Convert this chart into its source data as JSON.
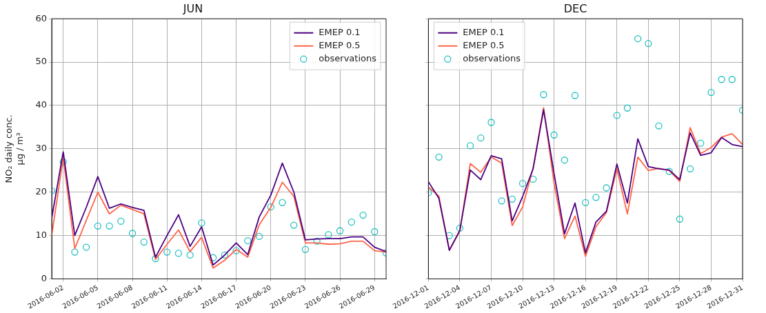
{
  "chart_data": [
    {
      "type": "line",
      "title": "JUN",
      "ylabel": "NO₂ daily conc.\nµg / m³",
      "legend": "top right",
      "grid": true,
      "x": [
        "2016-06-01",
        "2016-06-02",
        "2016-06-03",
        "2016-06-04",
        "2016-06-05",
        "2016-06-06",
        "2016-06-07",
        "2016-06-08",
        "2016-06-09",
        "2016-06-10",
        "2016-06-11",
        "2016-06-12",
        "2016-06-13",
        "2016-06-14",
        "2016-06-15",
        "2016-06-16",
        "2016-06-17",
        "2016-06-18",
        "2016-06-19",
        "2016-06-20",
        "2016-06-21",
        "2016-06-22",
        "2016-06-23",
        "2016-06-24",
        "2016-06-25",
        "2016-06-26",
        "2016-06-27",
        "2016-06-28",
        "2016-06-29",
        "2016-06-30"
      ],
      "xlim": [
        "2016-06-01",
        "2016-06-30"
      ],
      "xticks": [
        "2016-06-02",
        "2016-06-05",
        "2016-06-08",
        "2016-06-11",
        "2016-06-14",
        "2016-06-17",
        "2016-06-20",
        "2016-06-23",
        "2016-06-26",
        "2016-06-29"
      ],
      "ylim": [
        0,
        60
      ],
      "yticks": [
        0,
        10,
        20,
        30,
        40,
        50,
        60
      ],
      "series": [
        {
          "name": "EMEP 0.1",
          "type": "line",
          "marker": "none",
          "line_style": "solid",
          "color": "#4b0082",
          "values": [
            14,
            29.3,
            10,
            16.5,
            23.6,
            16.3,
            17.3,
            16.5,
            15.8,
            5,
            10,
            14.8,
            7.5,
            12,
            3.2,
            5.5,
            8.3,
            5.6,
            14.3,
            19.3,
            26.7,
            20,
            9,
            9.2,
            9.3,
            9.3,
            9.7,
            9.7,
            7.3,
            6.3
          ]
        },
        {
          "name": "EMEP 0.5",
          "type": "line",
          "marker": "none",
          "line_style": "solid",
          "color": "#ff6347",
          "values": [
            10,
            28,
            7,
            13.5,
            20,
            15,
            17,
            16,
            15,
            4.5,
            8,
            11.3,
            6.3,
            9.6,
            2.5,
            4.3,
            6.8,
            5,
            12.5,
            16.5,
            22.3,
            19,
            8.3,
            8.3,
            8,
            8.1,
            8.7,
            8.7,
            6.5,
            6.2
          ]
        },
        {
          "name": "observations",
          "type": "scatter",
          "marker": "circle",
          "color": "#20c0c0",
          "values": [
            20.3,
            27,
            6.2,
            7.3,
            12.2,
            12.2,
            13.3,
            10.5,
            8.5,
            4.7,
            6.2,
            5.9,
            5.5,
            12.9,
            4.9,
            5.5,
            6.5,
            8.8,
            9.8,
            16.6,
            17.6,
            12.4,
            6.8,
            8.7,
            10.2,
            11.1,
            13.1,
            14.7,
            10.9,
            6
          ]
        }
      ]
    },
    {
      "type": "line",
      "title": "DEC",
      "legend": "top left",
      "grid": true,
      "tick_labels": "x",
      "x": [
        "2016-12-01",
        "2016-12-02",
        "2016-12-03",
        "2016-12-04",
        "2016-12-05",
        "2016-12-06",
        "2016-12-07",
        "2016-12-08",
        "2016-12-09",
        "2016-12-10",
        "2016-12-11",
        "2016-12-12",
        "2016-12-13",
        "2016-12-14",
        "2016-12-15",
        "2016-12-16",
        "2016-12-17",
        "2016-12-18",
        "2016-12-19",
        "2016-12-20",
        "2016-12-21",
        "2016-12-22",
        "2016-12-23",
        "2016-12-24",
        "2016-12-25",
        "2016-12-26",
        "2016-12-27",
        "2016-12-28",
        "2016-12-29",
        "2016-12-30",
        "2016-12-31"
      ],
      "xlim": [
        "2016-12-01",
        "2016-12-31"
      ],
      "xticks": [
        "2016-12-01",
        "2016-12-04",
        "2016-12-07",
        "2016-12-10",
        "2016-12-13",
        "2016-12-16",
        "2016-12-19",
        "2016-12-22",
        "2016-12-25",
        "2016-12-28",
        "2016-12-31"
      ],
      "ylim": [
        0,
        60
      ],
      "yticks": [
        0,
        10,
        20,
        30,
        40,
        50,
        60
      ],
      "series": [
        {
          "name": "EMEP 0.1",
          "type": "line",
          "marker": "none",
          "line_style": "solid",
          "color": "#4b0082",
          "values": [
            22.4,
            18.6,
            6.6,
            11.2,
            25.1,
            22.9,
            28.4,
            27.7,
            13.4,
            19,
            25.4,
            39,
            24.3,
            10.4,
            17.5,
            6,
            13.1,
            15.6,
            26.5,
            17.5,
            32.3,
            25.9,
            25.4,
            25.1,
            22.9,
            33.7,
            28.5,
            29.1,
            32.6,
            31,
            30.5
          ]
        },
        {
          "name": "EMEP 0.5",
          "type": "line",
          "marker": "none",
          "line_style": "solid",
          "color": "#ff6347",
          "values": [
            21.2,
            19.1,
            6.6,
            11,
            26.6,
            24.6,
            28.1,
            26.7,
            12.3,
            16.6,
            25.6,
            39.5,
            22.1,
            9.3,
            14.5,
            5.2,
            12,
            15.3,
            25.4,
            15,
            28.1,
            25,
            25.5,
            25,
            22.5,
            34.9,
            28.9,
            30.3,
            32.7,
            33.5,
            31
          ]
        },
        {
          "name": "observations",
          "type": "scatter",
          "marker": "circle",
          "color": "#20c0c0",
          "values": [
            19.9,
            28.1,
            10,
            11.7,
            30.7,
            32.5,
            36.1,
            18,
            18.4,
            22,
            23,
            42.5,
            33.2,
            27.4,
            42.3,
            17.6,
            18.8,
            21,
            37.7,
            39.4,
            55.4,
            54.3,
            35.3,
            24.8,
            13.8,
            25.4,
            31.3,
            43,
            46,
            46,
            38.9
          ]
        }
      ]
    }
  ]
}
